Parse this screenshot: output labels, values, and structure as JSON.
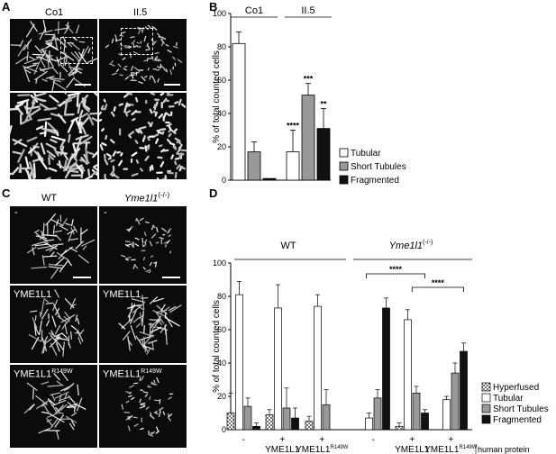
{
  "panels": {
    "A": {
      "letter": "A",
      "headers": [
        "Co1",
        "II.5"
      ]
    },
    "B": {
      "letter": "B",
      "chart_data": {
        "type": "bar",
        "groups": [
          "Co1",
          "II.5"
        ],
        "series": [
          {
            "name": "Tubular",
            "color": "#ffffff",
            "pattern": "none",
            "values": [
              82,
              17
            ],
            "errors": [
              7,
              13
            ]
          },
          {
            "name": "Short Tubules",
            "color": "#999999",
            "pattern": "none",
            "values": [
              17,
              51
            ],
            "errors": [
              6,
              7
            ]
          },
          {
            "name": "Fragmented",
            "color": "#111111",
            "pattern": "none",
            "values": [
              1,
              31
            ],
            "errors": [
              0,
              12
            ]
          }
        ],
        "significance": [
          {
            "group": 1,
            "series": 0,
            "label": "****"
          },
          {
            "group": 1,
            "series": 1,
            "label": "***"
          },
          {
            "group": 1,
            "series": 2,
            "label": "**"
          }
        ],
        "ylabel": "% of total counted cells",
        "ylim": [
          0,
          100
        ],
        "yticks": [
          "0",
          "20",
          "40",
          "60",
          "80",
          "100"
        ],
        "legend": "right"
      }
    },
    "C": {
      "letter": "C",
      "col_headers": [
        "WT",
        "Yme1l1"
      ],
      "col_header_sup": "(-/-)",
      "cells": [
        {
          "label": "-",
          "sup": ""
        },
        {
          "label": "-",
          "sup": ""
        },
        {
          "label": "YME1L1",
          "sup": ""
        },
        {
          "label": "YME1L1",
          "sup": ""
        },
        {
          "label": "YME1L1",
          "sup": "R149W"
        },
        {
          "label": "YME1L1",
          "sup": "R149W"
        }
      ]
    },
    "D": {
      "letter": "D",
      "chart_data": {
        "type": "bar",
        "group_headers": [
          "WT",
          "Yme1l1"
        ],
        "group_header_sup": "(-/-)",
        "conditions": [
          "-",
          "+",
          "+",
          "-",
          "+",
          "+"
        ],
        "condition_labels": [
          "",
          "YME1L1",
          "YME1L1",
          "",
          "YME1L1",
          "YME1L1"
        ],
        "condition_sups": [
          "",
          "",
          "R149W",
          "",
          "",
          "R149W"
        ],
        "row_label": "human protein",
        "series": [
          {
            "name": "Hyperfused",
            "color": "#ffffff",
            "pattern": "check",
            "values": [
              10,
              9,
              5,
              0,
              2,
              0
            ],
            "errors": [
              12,
              3,
              3,
              0,
              2,
              0
            ]
          },
          {
            "name": "Tubular",
            "color": "#ffffff",
            "pattern": "none",
            "values": [
              81,
              73,
              74,
              7,
              66,
              18
            ],
            "errors": [
              8,
              14,
              7,
              3,
              6,
              2
            ]
          },
          {
            "name": "Short Tubules",
            "color": "#999999",
            "pattern": "none",
            "values": [
              14,
              13,
              15,
              19,
              22,
              34
            ],
            "errors": [
              5,
              12,
              9,
              5,
              4,
              6
            ]
          },
          {
            "name": "Fragmented",
            "color": "#111111",
            "pattern": "none",
            "values": [
              2,
              7,
              0,
              73,
              10,
              47
            ],
            "errors": [
              2,
              6,
              0,
              6,
              2,
              5
            ]
          }
        ],
        "significance": [
          {
            "from": 3,
            "to": 4,
            "label": "****"
          },
          {
            "from": 4,
            "to": 5,
            "label": "****"
          }
        ],
        "ylabel": "% of total counted cells",
        "ylim": [
          0,
          100
        ],
        "yticks": [
          "0",
          "20",
          "40",
          "60",
          "80",
          "100"
        ],
        "legend": "right"
      }
    }
  }
}
